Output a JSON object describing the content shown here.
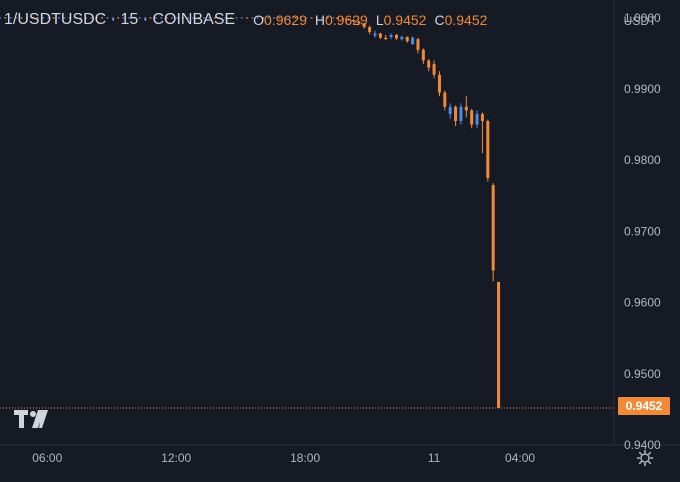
{
  "legend": {
    "symbol": "1/USDTUSDC · 15 · COINBASE",
    "open_key": "O",
    "open": "0.9629",
    "high_key": "H",
    "high": "0.9629",
    "low_key": "L",
    "low": "0.9452",
    "close_key": "C",
    "close": "0.9452"
  },
  "price_axis_unit": "USDT",
  "last_price_label": "0.9452",
  "icons": {
    "logo": "tradingview-logo-icon",
    "settings": "gear-icon"
  },
  "colors": {
    "background": "#161a25",
    "up": "#4c8be3",
    "down": "#f08a36",
    "text": "#d1d4dc",
    "axis_text": "#b2b5be"
  },
  "chart_data": {
    "type": "candlestick",
    "symbol": "1/USDTUSDC",
    "interval": "15",
    "exchange": "COINBASE",
    "y_unit": "USDT",
    "ylim": [
      0.94,
      1.0025
    ],
    "y_ticks": [
      "1.0000",
      "0.9900",
      "0.9800",
      "0.9700",
      "0.9600",
      "0.9500",
      "0.9400"
    ],
    "x_ticks": [
      {
        "label": "06:00",
        "time": 6.0
      },
      {
        "label": "12:00",
        "time": 12.0
      },
      {
        "label": "18:00",
        "time": 18.0
      },
      {
        "label": "11",
        "time": 24.0
      },
      {
        "label": "04:00",
        "time": 28.0
      }
    ],
    "xlim": [
      3.8,
      32.0
    ],
    "last_price": 0.9452,
    "flat_series": {
      "time_start": 3.8,
      "time_end": 19.4,
      "step": 0.25,
      "value": 1.0
    },
    "candles": [
      {
        "t": 19.5,
        "o": 1.0,
        "h": 1.0001,
        "l": 0.9999,
        "c": 0.9999
      },
      {
        "t": 19.75,
        "o": 0.9999,
        "h": 1.0,
        "l": 0.9998,
        "c": 0.9998
      },
      {
        "t": 20.0,
        "o": 0.9998,
        "h": 0.9999,
        "l": 0.9996,
        "c": 0.9997
      },
      {
        "t": 20.25,
        "o": 0.9997,
        "h": 0.9998,
        "l": 0.9994,
        "c": 0.9995
      },
      {
        "t": 20.5,
        "o": 0.9995,
        "h": 0.9996,
        "l": 0.999,
        "c": 0.9992
      },
      {
        "t": 20.75,
        "o": 0.9992,
        "h": 0.9993,
        "l": 0.9985,
        "c": 0.9987
      },
      {
        "t": 21.0,
        "o": 0.9987,
        "h": 0.9989,
        "l": 0.9977,
        "c": 0.998
      },
      {
        "t": 21.25,
        "o": 0.9975,
        "h": 0.9982,
        "l": 0.9972,
        "c": 0.9978
      },
      {
        "t": 21.5,
        "o": 0.9978,
        "h": 0.9979,
        "l": 0.997,
        "c": 0.9972
      },
      {
        "t": 21.75,
        "o": 0.9972,
        "h": 0.9976,
        "l": 0.9969,
        "c": 0.997
      },
      {
        "t": 22.0,
        "o": 0.9973,
        "h": 0.9978,
        "l": 0.997,
        "c": 0.9976
      },
      {
        "t": 22.25,
        "o": 0.9976,
        "h": 0.9977,
        "l": 0.9969,
        "c": 0.9971
      },
      {
        "t": 22.5,
        "o": 0.997,
        "h": 0.9975,
        "l": 0.9968,
        "c": 0.9973
      },
      {
        "t": 22.75,
        "o": 0.9973,
        "h": 0.9974,
        "l": 0.9965,
        "c": 0.9967
      },
      {
        "t": 23.0,
        "o": 0.9963,
        "h": 0.9974,
        "l": 0.9962,
        "c": 0.9972
      },
      {
        "t": 23.25,
        "o": 0.997,
        "h": 0.9972,
        "l": 0.995,
        "c": 0.9955
      },
      {
        "t": 23.5,
        "o": 0.9955,
        "h": 0.9957,
        "l": 0.9935,
        "c": 0.994
      },
      {
        "t": 23.75,
        "o": 0.994,
        "h": 0.9942,
        "l": 0.9925,
        "c": 0.993
      },
      {
        "t": 24.0,
        "o": 0.9935,
        "h": 0.994,
        "l": 0.9915,
        "c": 0.992
      },
      {
        "t": 24.25,
        "o": 0.992,
        "h": 0.9925,
        "l": 0.989,
        "c": 0.9895
      },
      {
        "t": 24.5,
        "o": 0.9895,
        "h": 0.9898,
        "l": 0.987,
        "c": 0.9875
      },
      {
        "t": 24.75,
        "o": 0.9865,
        "h": 0.988,
        "l": 0.9858,
        "c": 0.9875
      },
      {
        "t": 25.0,
        "o": 0.9875,
        "h": 0.9877,
        "l": 0.9848,
        "c": 0.9855
      },
      {
        "t": 25.25,
        "o": 0.9855,
        "h": 0.988,
        "l": 0.985,
        "c": 0.9875
      },
      {
        "t": 25.5,
        "o": 0.9875,
        "h": 0.989,
        "l": 0.986,
        "c": 0.987
      },
      {
        "t": 25.75,
        "o": 0.987,
        "h": 0.9872,
        "l": 0.9845,
        "c": 0.985
      },
      {
        "t": 26.0,
        "o": 0.985,
        "h": 0.987,
        "l": 0.9845,
        "c": 0.9865
      },
      {
        "t": 26.25,
        "o": 0.9865,
        "h": 0.9867,
        "l": 0.981,
        "c": 0.9855
      },
      {
        "t": 26.5,
        "o": 0.9855,
        "h": 0.9857,
        "l": 0.977,
        "c": 0.9775
      },
      {
        "t": 26.75,
        "o": 0.9765,
        "h": 0.9768,
        "l": 0.963,
        "c": 0.9645
      },
      {
        "t": 27.0,
        "o": 0.9629,
        "h": 0.9629,
        "l": 0.9452,
        "c": 0.9452
      }
    ]
  }
}
